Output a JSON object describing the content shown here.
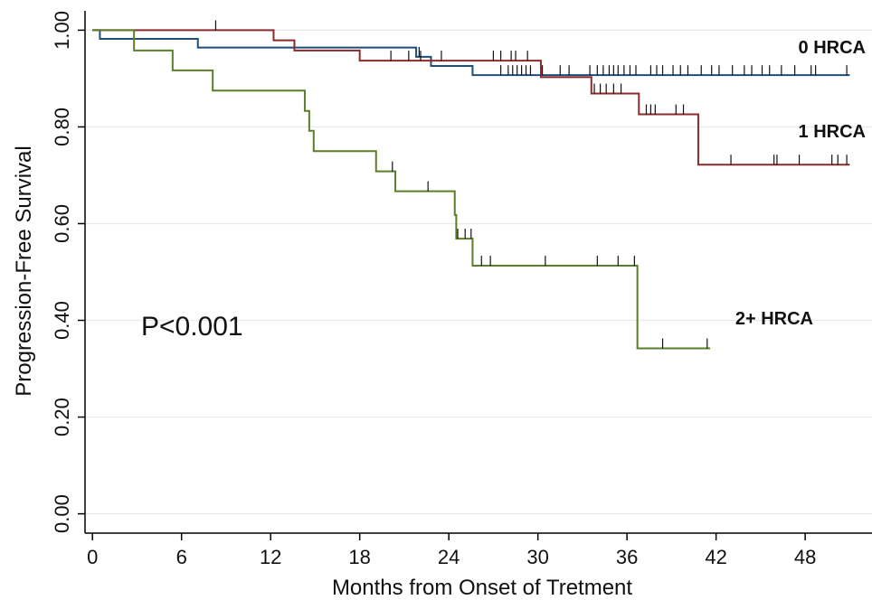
{
  "chart_data": {
    "type": "line",
    "subtype": "kaplan-meier-step",
    "title": "",
    "xlabel": "Months from Onset of Tretment",
    "ylabel": "Progression-Free Survival",
    "xlim": [
      -0.5,
      52.5
    ],
    "ylim": [
      -0.04,
      1.04
    ],
    "xticks": [
      0,
      6,
      12,
      18,
      24,
      30,
      36,
      42,
      48
    ],
    "xtick_labels": [
      "0",
      "6",
      "12",
      "18",
      "24",
      "30",
      "36",
      "42",
      "48"
    ],
    "yticks": [
      0,
      0.2,
      0.4,
      0.6,
      0.8,
      1.0
    ],
    "ytick_labels": [
      "0.00",
      "0.20",
      "0.40",
      "0.60",
      "0.80",
      "1.00"
    ],
    "grid": "horizontal",
    "legend": "none (series labelled inline at right)",
    "annotation": "P<0.001",
    "series": [
      {
        "name": "0 HRCA",
        "color": "#1f4e79",
        "steps": [
          [
            0,
            1.0
          ],
          [
            0.5,
            0.982
          ],
          [
            7.1,
            0.964
          ],
          [
            21.8,
            0.945
          ],
          [
            22.8,
            0.926
          ],
          [
            25.6,
            0.907
          ]
        ],
        "end_x": 51.0,
        "censored": [
          22.0,
          27.5,
          28.0,
          28.3,
          28.6,
          28.9,
          29.2,
          29.5,
          30.3,
          31.5,
          32.1,
          33.5,
          34.0,
          34.4,
          34.8,
          35.1,
          35.4,
          35.8,
          36.2,
          36.6,
          37.6,
          38.0,
          38.4,
          39.1,
          39.6,
          40.1,
          41.0,
          41.7,
          42.2,
          43.1,
          43.9,
          44.4,
          45.1,
          45.6,
          46.4,
          47.3,
          48.4,
          48.7,
          50.8
        ]
      },
      {
        "name": "1 HRCA",
        "color": "#8b2a2a",
        "steps": [
          [
            0,
            1.0
          ],
          [
            12.2,
            0.979
          ],
          [
            13.6,
            0.958
          ],
          [
            18.0,
            0.937
          ],
          [
            30.2,
            0.903
          ],
          [
            33.6,
            0.869
          ],
          [
            36.8,
            0.826
          ],
          [
            40.8,
            0.722
          ]
        ],
        "end_x": 51.0,
        "censored": [
          8.3,
          20.1,
          21.3,
          22.1,
          23.5,
          27.0,
          27.5,
          28.2,
          28.5,
          29.3,
          33.8,
          34.2,
          34.6,
          35.1,
          35.6,
          37.3,
          37.6,
          37.9,
          39.3,
          39.8,
          43.0,
          45.9,
          46.1,
          47.6,
          49.8,
          50.2,
          50.8
        ]
      },
      {
        "name": "2+ HRCA",
        "color": "#5a7e2a",
        "steps": [
          [
            0,
            1.0
          ],
          [
            2.8,
            0.958
          ],
          [
            5.4,
            0.917
          ],
          [
            8.1,
            0.875
          ],
          [
            14.3,
            0.833
          ],
          [
            14.6,
            0.792
          ],
          [
            14.9,
            0.75
          ],
          [
            19.1,
            0.708
          ],
          [
            20.4,
            0.667
          ],
          [
            24.4,
            0.618
          ],
          [
            24.5,
            0.569
          ],
          [
            25.6,
            0.513
          ],
          [
            36.7,
            0.342
          ]
        ],
        "end_x": 41.6,
        "censored": [
          20.2,
          22.6,
          24.6,
          25.1,
          25.5,
          26.2,
          26.8,
          30.5,
          34.0,
          35.4,
          36.5,
          38.4,
          41.4
        ]
      }
    ]
  }
}
